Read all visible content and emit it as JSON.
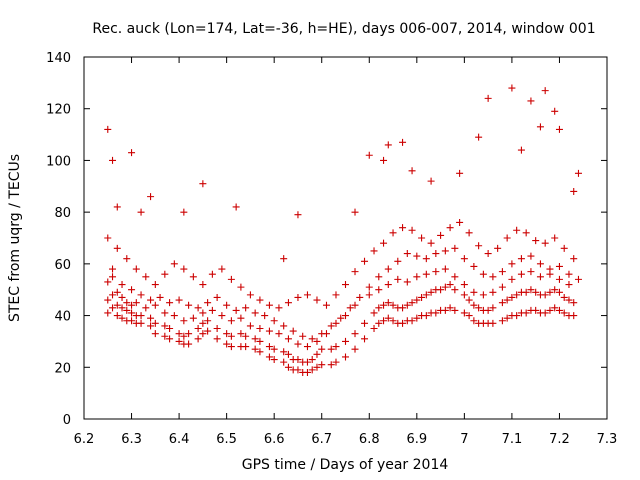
{
  "chart_data": {
    "type": "scatter",
    "title": "Rec. auck (Lon=174, Lat=-36, h=HE), days 006-007, 2014, window 001",
    "xlabel": "GPS time / Days of year 2014",
    "ylabel": "STEC from uqrg / TECUs",
    "xlim": [
      6.2,
      7.3
    ],
    "ylim": [
      0,
      140
    ],
    "x_ticks": [
      6.2,
      6.3,
      6.4,
      6.5,
      6.6,
      6.7,
      6.8,
      6.9,
      7.0,
      7.1,
      7.2,
      7.3
    ],
    "x_tick_labels": [
      "6.2",
      "6.3",
      "6.4",
      "6.5",
      "6.6",
      "6.7",
      "6.8",
      "6.9",
      "7",
      "7.1",
      "7.2",
      "7.3"
    ],
    "y_ticks": [
      0,
      20,
      40,
      60,
      80,
      100,
      120,
      140
    ],
    "y_tick_labels": [
      "0",
      "20",
      "40",
      "60",
      "80",
      "100",
      "120",
      "140"
    ],
    "grid": false,
    "legend": "none",
    "marker": "plus",
    "color": "#cc0000",
    "x": [
      6.25,
      6.26,
      6.27,
      6.28,
      6.29,
      6.3,
      6.31,
      6.32,
      6.34,
      6.35,
      6.37,
      6.38,
      6.4,
      6.41,
      6.42,
      6.44,
      6.45,
      6.46,
      6.48,
      6.5,
      6.51,
      6.53,
      6.54,
      6.56,
      6.57,
      6.59,
      6.6,
      6.62,
      6.63,
      6.64,
      6.65,
      6.66,
      6.67,
      6.68,
      6.69,
      6.7,
      6.72,
      6.73,
      6.75,
      6.77,
      6.79,
      6.81,
      6.82,
      6.83,
      6.84,
      6.85,
      6.86,
      6.87,
      6.88,
      6.89,
      6.9,
      6.91,
      6.92,
      6.93,
      6.94,
      6.95,
      6.96,
      6.97,
      6.98,
      7.0,
      7.01,
      7.02,
      7.03,
      7.04,
      7.05,
      7.06,
      7.08,
      7.09,
      7.1,
      7.11,
      7.12,
      7.13,
      7.14,
      7.15,
      7.16,
      7.17,
      7.18,
      7.19,
      7.2,
      7.21,
      7.22,
      7.23,
      6.25,
      6.26,
      6.27,
      6.28,
      6.29,
      6.3,
      6.31,
      6.32,
      6.34,
      6.35,
      6.37,
      6.38,
      6.4,
      6.41,
      6.42,
      6.44,
      6.45,
      6.46,
      6.48,
      6.5,
      6.51,
      6.53,
      6.54,
      6.56,
      6.57,
      6.59,
      6.6,
      6.62,
      6.63,
      6.64,
      6.65,
      6.66,
      6.67,
      6.68,
      6.69,
      6.7,
      6.72,
      6.73,
      6.75,
      6.77,
      6.79,
      6.81,
      6.82,
      6.83,
      6.84,
      6.85,
      6.86,
      6.87,
      6.88,
      6.89,
      6.9,
      6.91,
      6.92,
      6.93,
      6.94,
      6.95,
      6.96,
      6.97,
      6.98,
      7.0,
      7.01,
      7.02,
      7.03,
      7.04,
      7.05,
      7.06,
      7.08,
      7.09,
      7.1,
      7.11,
      7.12,
      7.13,
      7.14,
      7.15,
      7.16,
      7.17,
      7.18,
      7.19,
      7.2,
      7.21,
      7.22,
      7.23,
      6.25,
      6.26,
      6.27,
      6.28,
      6.29,
      6.3,
      6.31,
      6.33,
      6.35,
      6.37,
      6.39,
      6.41,
      6.43,
      6.45,
      6.47,
      6.49,
      6.51,
      6.53,
      6.55,
      6.57,
      6.59,
      6.61,
      6.63,
      6.65,
      6.67,
      6.69,
      6.71,
      6.73,
      6.75,
      6.77,
      6.8,
      6.82,
      6.84,
      6.86,
      6.88,
      6.9,
      6.92,
      6.94,
      6.96,
      6.98,
      7.0,
      7.02,
      7.04,
      7.06,
      7.08,
      7.1,
      7.12,
      7.14,
      7.16,
      7.18,
      7.2,
      7.22,
      6.26,
      6.28,
      6.3,
      6.32,
      6.34,
      6.36,
      6.38,
      6.4,
      6.42,
      6.44,
      6.46,
      6.48,
      6.5,
      6.52,
      6.54,
      6.56,
      6.58,
      6.6,
      6.62,
      6.64,
      6.66,
      6.68,
      6.7,
      6.72,
      6.74,
      6.76,
      6.78,
      6.8,
      6.82,
      6.84,
      6.86,
      6.88,
      6.9,
      6.92,
      6.94,
      6.96,
      6.98,
      7.0,
      7.02,
      7.04,
      7.06,
      7.08,
      7.1,
      7.12,
      7.14,
      7.16,
      7.18,
      7.2,
      7.22,
      7.24,
      6.25,
      6.27,
      6.29,
      6.31,
      6.33,
      6.35,
      6.37,
      6.39,
      6.41,
      6.43,
      6.45,
      6.47,
      6.49,
      6.51,
      6.53,
      6.55,
      6.57,
      6.59,
      6.61,
      6.63,
      6.65,
      6.67,
      6.69,
      6.71,
      6.73,
      6.75,
      6.77,
      6.79,
      6.81,
      6.83,
      6.85,
      6.87,
      6.89,
      6.91,
      6.93,
      6.95,
      6.97,
      6.99,
      7.01,
      7.03,
      7.05,
      7.07,
      7.09,
      7.11,
      7.13,
      7.15,
      7.17,
      7.19,
      7.21,
      7.23,
      6.25,
      6.26,
      6.27,
      6.3,
      6.32,
      6.34,
      6.41,
      6.45,
      6.52,
      6.62,
      6.65,
      6.77,
      6.8,
      6.83,
      6.84,
      6.87,
      6.89,
      6.93,
      6.99,
      7.03,
      7.05,
      7.1,
      7.12,
      7.14,
      7.16,
      7.17,
      7.19,
      7.2,
      7.23,
      7.24
    ],
    "y": [
      41,
      43,
      40,
      39,
      38,
      38,
      37,
      37,
      36,
      33,
      32,
      31,
      30,
      29,
      29,
      31,
      33,
      34,
      31,
      29,
      28,
      28,
      28,
      27,
      26,
      24,
      23,
      22,
      20,
      19,
      19,
      18,
      18,
      19,
      20,
      21,
      21,
      22,
      24,
      27,
      31,
      35,
      37,
      38,
      39,
      38,
      37,
      37,
      38,
      38,
      39,
      40,
      40,
      41,
      41,
      42,
      42,
      43,
      42,
      41,
      40,
      38,
      37,
      37,
      37,
      37,
      38,
      39,
      40,
      40,
      41,
      41,
      42,
      42,
      41,
      41,
      42,
      43,
      42,
      41,
      40,
      40,
      46,
      48,
      44,
      43,
      42,
      41,
      40,
      40,
      39,
      37,
      36,
      35,
      33,
      32,
      33,
      35,
      37,
      38,
      35,
      33,
      32,
      33,
      32,
      31,
      30,
      28,
      27,
      26,
      25,
      23,
      23,
      22,
      22,
      23,
      25,
      27,
      27,
      28,
      30,
      33,
      37,
      41,
      43,
      44,
      45,
      44,
      43,
      43,
      44,
      45,
      46,
      47,
      48,
      49,
      50,
      50,
      51,
      52,
      50,
      48,
      46,
      44,
      43,
      42,
      42,
      43,
      45,
      46,
      47,
      48,
      49,
      49,
      50,
      49,
      48,
      48,
      49,
      50,
      49,
      47,
      46,
      45,
      53,
      55,
      49,
      47,
      45,
      44,
      45,
      43,
      44,
      41,
      40,
      38,
      39,
      41,
      42,
      40,
      38,
      39,
      36,
      35,
      34,
      33,
      31,
      29,
      28,
      30,
      33,
      37,
      40,
      44,
      48,
      50,
      52,
      54,
      53,
      55,
      56,
      57,
      58,
      55,
      52,
      49,
      48,
      49,
      51,
      54,
      56,
      57,
      55,
      56,
      54,
      52,
      58,
      52,
      50,
      48,
      46,
      47,
      45,
      46,
      44,
      43,
      45,
      47,
      44,
      42,
      43,
      41,
      40,
      38,
      36,
      34,
      32,
      31,
      33,
      36,
      39,
      43,
      47,
      51,
      55,
      58,
      61,
      64,
      63,
      62,
      64,
      65,
      66,
      62,
      59,
      56,
      55,
      57,
      60,
      62,
      63,
      60,
      58,
      59,
      56,
      54,
      70,
      66,
      62,
      58,
      55,
      52,
      56,
      60,
      58,
      55,
      52,
      56,
      58,
      54,
      51,
      48,
      46,
      44,
      43,
      45,
      47,
      48,
      46,
      44,
      48,
      52,
      57,
      61,
      65,
      68,
      72,
      74,
      73,
      70,
      68,
      71,
      74,
      76,
      72,
      67,
      64,
      66,
      70,
      73,
      72,
      69,
      68,
      70,
      66,
      62,
      112,
      100,
      82,
      103,
      80,
      86,
      80,
      91,
      82,
      62,
      79,
      80,
      102,
      100,
      106,
      107,
      96,
      92,
      95,
      109,
      124,
      128,
      104,
      123,
      113,
      127,
      119,
      112,
      88,
      95
    ]
  }
}
